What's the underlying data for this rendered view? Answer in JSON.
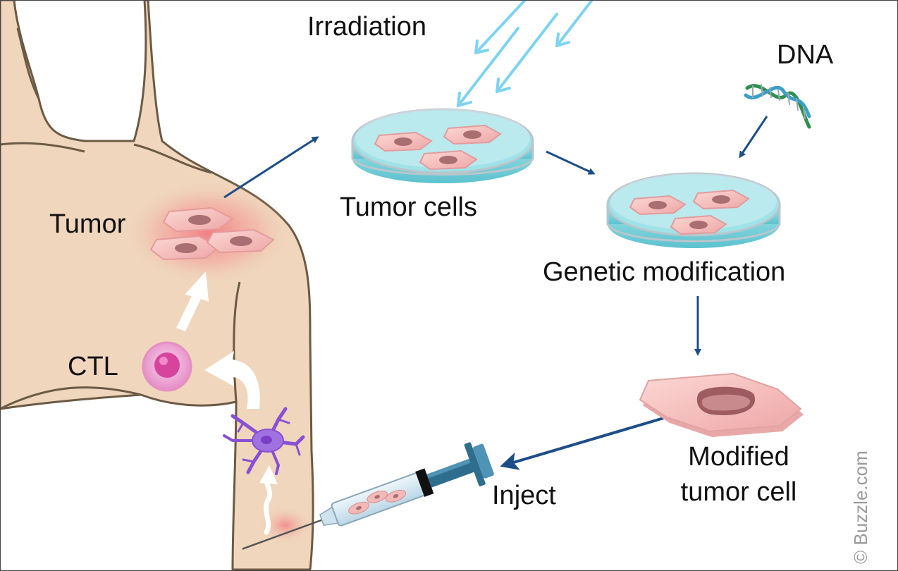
{
  "labels": {
    "irradiation": "Irradiation",
    "dna": "DNA",
    "tumor": "Tumor",
    "tumor_cells": "Tumor cells",
    "genetic_modification": "Genetic modification",
    "ctl": "CTL",
    "modified_line1": "Modified",
    "modified_line2": "tumor cell",
    "inject": "Inject"
  },
  "watermark": "© Buzzle.com",
  "colors": {
    "skin": "#f0d6bd",
    "skin_outline": "#6b5a45",
    "arrow_blue": "#1d4e89",
    "ray_blue": "#7fd3f2",
    "dish_liquid": "#86d8e0",
    "cell_pink": "#f3b9b7",
    "ctl_pink": "#e57fbf",
    "dendritic_purple": "#8a4fd3",
    "tumor_glow": "#f3707a"
  }
}
